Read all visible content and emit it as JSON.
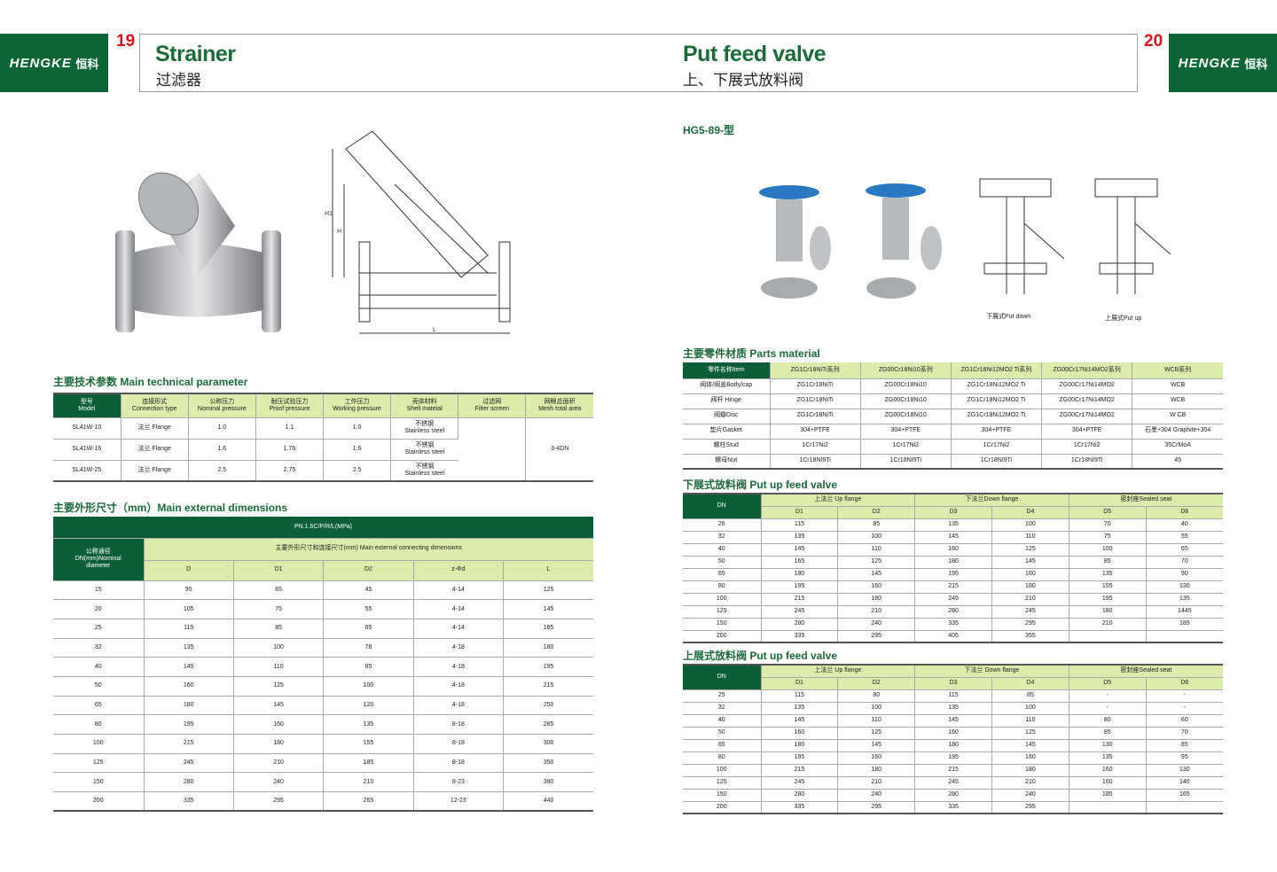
{
  "brand": {
    "name_cn": "恒科",
    "name_en": "HENGKE",
    "color": "#0c6534"
  },
  "left_page": {
    "number": "19",
    "title": "Strainer",
    "subtitle": "过滤器",
    "drawing_labels": {
      "h1": "H1",
      "h": "H",
      "l": "L"
    },
    "tech_heading": "主要技术参数 Main technical parameter",
    "tech_table": {
      "headers": [
        [
          "型号",
          "Model"
        ],
        [
          "连接形式",
          "Connection type"
        ],
        [
          "公称压力",
          "Nominal pressure"
        ],
        [
          "耐压试验压力",
          "Proof pressure"
        ],
        [
          "工作压力",
          "Working pressure"
        ],
        [
          "壳体材料",
          "Shell mateial"
        ],
        [
          "过滤网",
          "Filter screen"
        ],
        [
          "网眼总面积",
          "Mesh total area"
        ]
      ],
      "rows": [
        [
          "SL41W-10",
          "法兰 Flange",
          "1.0",
          "1.1",
          "1.0",
          "不锈钢",
          "Stainless steel"
        ],
        [
          "SL41W-16",
          "法兰 Flange",
          "1.6",
          "1.76",
          "1.6",
          "不锈钢",
          "Stainless steel"
        ],
        [
          "SL41W-25",
          "法兰 Flange",
          "2.5",
          "2.75",
          "2.5",
          "不锈钢",
          "Stainless steel"
        ]
      ],
      "filter_screen": [
        "不锈钢",
        "Stainless steel"
      ],
      "mesh_area": "3-4DN"
    },
    "dim_heading": "主要外形尺寸（mm）Main external dimensions",
    "dim_table": {
      "pn": "PN.1.6C/P/R/L(MPa)",
      "dn_label": [
        "公称通径",
        "DN(mm)Nominal",
        "diameter"
      ],
      "group": "主要外形尺寸和连接尺寸(mm) Main external connecting dimensions",
      "columns": [
        "D",
        "D1",
        "D2",
        "z-Φd",
        "L"
      ],
      "rows": [
        [
          "15",
          "95",
          "65",
          "45",
          "4-14",
          "125"
        ],
        [
          "20",
          "105",
          "75",
          "55",
          "4-14",
          "145"
        ],
        [
          "25",
          "115",
          "85",
          "65",
          "4-14",
          "165"
        ],
        [
          "32",
          "135",
          "100",
          "78",
          "4-18",
          "180"
        ],
        [
          "40",
          "145",
          "110",
          "85",
          "4-18",
          "195"
        ],
        [
          "50",
          "160",
          "125",
          "100",
          "4-18",
          "215"
        ],
        [
          "65",
          "180",
          "145",
          "120",
          "4-18",
          "250"
        ],
        [
          "80",
          "195",
          "160",
          "135",
          "8-18",
          "285"
        ],
        [
          "100",
          "215",
          "180",
          "155",
          "8-18",
          "300"
        ],
        [
          "125",
          "245",
          "210",
          "185",
          "8-18",
          "350"
        ],
        [
          "150",
          "280",
          "240",
          "210",
          "8-23",
          "380"
        ],
        [
          "200",
          "335",
          "295",
          "265",
          "12-23",
          "440"
        ]
      ]
    }
  },
  "right_page": {
    "number": "20",
    "title": "Put feed valve",
    "subtitle": "上、下展式放料阀",
    "model": "HG5-89-型",
    "caption_down": "下展式Put down",
    "caption_up": "上展式Put up",
    "parts_heading": "主要零件材质 Parts material",
    "parts_table": {
      "headers": [
        "零件名称Item",
        "ZG1Cr18NiTi系列",
        "ZG00Cr18Ni10系列",
        "ZG1Cr18Ni12MO2 Ti系列",
        "ZG00Cr17Ni14MO2系列",
        "WCB系列"
      ],
      "rows": [
        [
          "阀体/阀盖Body/cap",
          "ZG1Cr18NiTi",
          "ZG00Cr18Ni10",
          "ZG1Cr18Ni12MO2 Ti",
          "ZG00Cr17Ni14MO2",
          "WCB"
        ],
        [
          "阀杆 Hinge",
          "ZG1Cr18NiTi",
          "ZG00Cr18Ni10",
          "ZG1Cr18Ni12MO2 Ti",
          "ZG00Cr17Ni14MO2",
          "WCB"
        ],
        [
          "阀瓣Disc",
          "ZG1Cr18NiTi",
          "ZG00Cr18Ni10",
          "ZG1Cr18Ni12MO2 Ti",
          "ZG00Cr17Ni14MO2",
          "W CB"
        ],
        [
          "垫片Gasket",
          "304+PTFE",
          "304+PTFE",
          "304+PTFE",
          "304+PTFE",
          "石墨+304 Graphite+304"
        ],
        [
          "螺柱Stud",
          "1Cr17Ni2",
          "1Cr17Ni2",
          "1Cr17Ni2",
          "1Cr17Ni2",
          "35CrMoA"
        ],
        [
          "螺母Nut",
          "1Cr18NI9Ti",
          "1Cr18NI9Ti",
          "1Cr18NI9Ti",
          "1Cr18NI9Ti",
          "45"
        ]
      ]
    },
    "down_heading": "下展式放料阀 Put up feed valve",
    "down_table": {
      "groups": [
        "上法兰 Up flange",
        "下法兰Down flange",
        "密封座Sealed seat"
      ],
      "columns": [
        "D1",
        "D2",
        "D3",
        "D4",
        "D5",
        "D6"
      ],
      "rows": [
        [
          "26",
          "115",
          "85",
          "135",
          "100",
          "70",
          "40"
        ],
        [
          "32",
          "135",
          "100",
          "145",
          "110",
          "75",
          "55"
        ],
        [
          "40",
          "145",
          "110",
          "160",
          "125",
          "100",
          "65"
        ],
        [
          "50",
          "165",
          "125",
          "180",
          "145",
          "85",
          "70"
        ],
        [
          "65",
          "180",
          "145",
          "195",
          "160",
          "135",
          "90"
        ],
        [
          "80",
          "195",
          "160",
          "215",
          "180",
          "155",
          "130"
        ],
        [
          "100",
          "215",
          "180",
          "245",
          "210",
          "195",
          "135"
        ],
        [
          "125",
          "245",
          "210",
          "280",
          "245",
          "180",
          "1445"
        ],
        [
          "150",
          "280",
          "240",
          "335",
          "295",
          "210",
          "185"
        ],
        [
          "200",
          "335",
          "295",
          "405",
          "355",
          "",
          ""
        ]
      ]
    },
    "up_heading": "上展式放料阀 Put up feed valve",
    "up_table": {
      "groups": [
        "上法兰 Up flange",
        "下法兰 Down flange",
        "密封座Sealed seat"
      ],
      "columns": [
        "D1",
        "D2",
        "D3",
        "D4",
        "D5",
        "D6"
      ],
      "rows": [
        [
          "25",
          "115",
          "80",
          "115",
          "85",
          "-",
          "-"
        ],
        [
          "32",
          "135",
          "100",
          "135",
          "100",
          "-",
          "-"
        ],
        [
          "40",
          "145",
          "110",
          "145",
          "110",
          "80",
          "60"
        ],
        [
          "50",
          "160",
          "125",
          "160",
          "125",
          "85",
          "70"
        ],
        [
          "65",
          "180",
          "145",
          "180",
          "145",
          "130",
          "85"
        ],
        [
          "80",
          "195",
          "160",
          "195",
          "160",
          "135",
          "95"
        ],
        [
          "100",
          "215",
          "180",
          "215",
          "180",
          "160",
          "130"
        ],
        [
          "125",
          "245",
          "210",
          "245",
          "210",
          "160",
          "140"
        ],
        [
          "150",
          "280",
          "240",
          "280",
          "240",
          "185",
          "165"
        ],
        [
          "200",
          "335",
          "295",
          "335",
          "295",
          "",
          ""
        ]
      ]
    },
    "dn_label": "DN"
  }
}
